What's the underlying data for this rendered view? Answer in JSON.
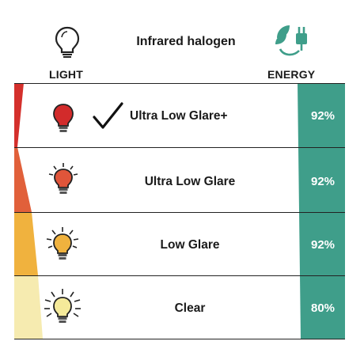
{
  "header": {
    "light_label": "LIGHT",
    "title": "Infrared halogen",
    "energy_label": "ENERGY"
  },
  "rows": [
    {
      "label": "Ultra Low Glare+",
      "percent": "92%",
      "bulb_color": "#d22b2b",
      "bulb_rays": false,
      "checked": true
    },
    {
      "label": "Ultra Low Glare",
      "percent": "92%",
      "bulb_color": "#e0553a",
      "bulb_rays": true,
      "checked": false
    },
    {
      "label": "Low Glare",
      "percent": "92%",
      "bulb_color": "#f0b23e",
      "bulb_rays": true,
      "checked": false
    },
    {
      "label": "Clear",
      "percent": "80%",
      "bulb_color": "#f5ea9a",
      "bulb_rays": true,
      "checked": false
    }
  ],
  "colors": {
    "energy_green": "#3f9e8a",
    "wedge_red": "#d4302c",
    "wedge_orange": "#e1603a",
    "wedge_yellow": "#f0b23e",
    "wedge_cream": "#f6ebb0",
    "divider": "#222222"
  },
  "icons": {
    "light": "lightbulb-outline-icon",
    "energy": "eco-plug-icon",
    "check": "checkmark-icon"
  }
}
